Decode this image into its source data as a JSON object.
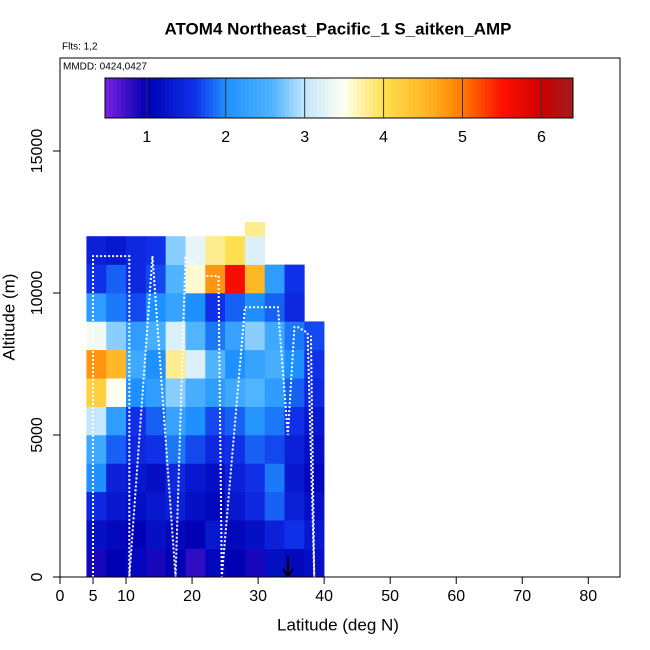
{
  "chart_data": {
    "type": "heatmap",
    "title": "ATOM4 Northeast_Pacific_1 S_aitken_AMP",
    "flights_label": "Flts: 1,2",
    "dates_label": "MMDD: 0424,0427",
    "xlabel": "Latitude (deg N)",
    "ylabel": "Altitude (m)",
    "xlim": [
      0,
      84.8
    ],
    "ylim": [
      0,
      18275
    ],
    "xticks": [
      0,
      5,
      10,
      20,
      30,
      40,
      50,
      60,
      70,
      80
    ],
    "yticks": [
      0,
      5000,
      10000,
      15000
    ],
    "lat_edges": [
      4,
      7,
      10,
      13,
      16,
      19,
      22,
      25,
      28,
      31,
      34,
      37,
      40
    ],
    "alt_edges": [
      0,
      1000,
      2000,
      3000,
      4000,
      5000,
      6000,
      7000,
      8000,
      9000,
      10000,
      11000,
      12000,
      12500
    ],
    "z": [
      [
        0.9,
        1.0,
        1.1,
        0.9,
        1.0,
        0.8,
        1.1,
        1.0,
        0.9,
        1.2,
        1.1,
        1.2
      ],
      [
        1.2,
        1.1,
        1.0,
        1.2,
        1.1,
        1.0,
        1.3,
        1.1,
        1.2,
        1.4,
        1.6,
        1.3
      ],
      [
        1.5,
        1.3,
        1.2,
        1.3,
        1.4,
        1.2,
        1.1,
        1.3,
        1.5,
        1.8,
        1.4,
        1.2
      ],
      [
        2.0,
        1.4,
        1.3,
        1.2,
        1.5,
        1.3,
        1.2,
        1.4,
        1.6,
        1.9,
        1.3,
        1.1
      ],
      [
        2.4,
        1.8,
        1.5,
        1.6,
        1.9,
        1.7,
        1.5,
        1.6,
        1.8,
        1.7,
        1.4,
        1.2
      ],
      [
        3.0,
        2.2,
        1.6,
        1.8,
        2.3,
        2.0,
        1.7,
        1.8,
        2.1,
        1.9,
        1.6,
        1.3
      ],
      [
        4.2,
        3.5,
        2.0,
        2.2,
        2.8,
        2.5,
        2.2,
        2.4,
        2.6,
        2.2,
        1.8,
        1.5
      ],
      [
        4.8,
        4.5,
        2.4,
        2.0,
        3.8,
        3.2,
        2.6,
        2.0,
        2.3,
        2.5,
        2.0,
        1.6
      ],
      [
        3.4,
        2.8,
        2.2,
        2.5,
        3.2,
        2.6,
        1.9,
        2.3,
        2.8,
        2.4,
        1.9,
        1.7
      ],
      [
        2.2,
        1.9,
        1.7,
        2.0,
        2.3,
        2.0,
        1.6,
        1.8,
        2.0,
        1.8,
        1.5,
        null
      ],
      [
        1.6,
        1.8,
        1.5,
        1.7,
        2.6,
        3.6,
        4.8,
        5.6,
        4.5,
        2.2,
        1.6,
        null
      ],
      [
        1.4,
        1.3,
        1.5,
        1.6,
        2.8,
        3.3,
        3.8,
        4.0,
        3.2,
        null,
        null,
        null
      ],
      [
        null,
        null,
        null,
        null,
        null,
        null,
        null,
        null,
        3.8,
        null,
        null,
        null
      ]
    ],
    "track": {
      "color": "#ffffff",
      "x": [
        5,
        5,
        10.5,
        10.5,
        14,
        17.5,
        19,
        22,
        24,
        24.5,
        28,
        31,
        33,
        34.5,
        35.5,
        36,
        37.5,
        38.5,
        38
      ],
      "values": [
        0,
        11300,
        11300,
        0,
        11300,
        0,
        11300,
        10600,
        10600,
        0,
        9500,
        9500,
        9500,
        5000,
        8800,
        8800,
        8600,
        0,
        8500
      ]
    },
    "colorbar_lim": [
      0.47,
      6.4
    ],
    "colorbar_ticks": [
      1,
      2,
      3,
      4,
      5,
      6
    ],
    "colorscale": [
      [
        0.47,
        "#7a22e0"
      ],
      [
        1,
        "#0000b4"
      ],
      [
        1.6,
        "#1030e8"
      ],
      [
        2,
        "#1e90ff"
      ],
      [
        2.6,
        "#50b4ff"
      ],
      [
        3,
        "#c4e6ff"
      ],
      [
        3.5,
        "#fffff0"
      ],
      [
        4,
        "#ffe050"
      ],
      [
        4.6,
        "#ffb020"
      ],
      [
        5,
        "#ff7a00"
      ],
      [
        5.5,
        "#ff1000"
      ],
      [
        6,
        "#d00000"
      ],
      [
        6.4,
        "#a01c1c"
      ]
    ]
  }
}
